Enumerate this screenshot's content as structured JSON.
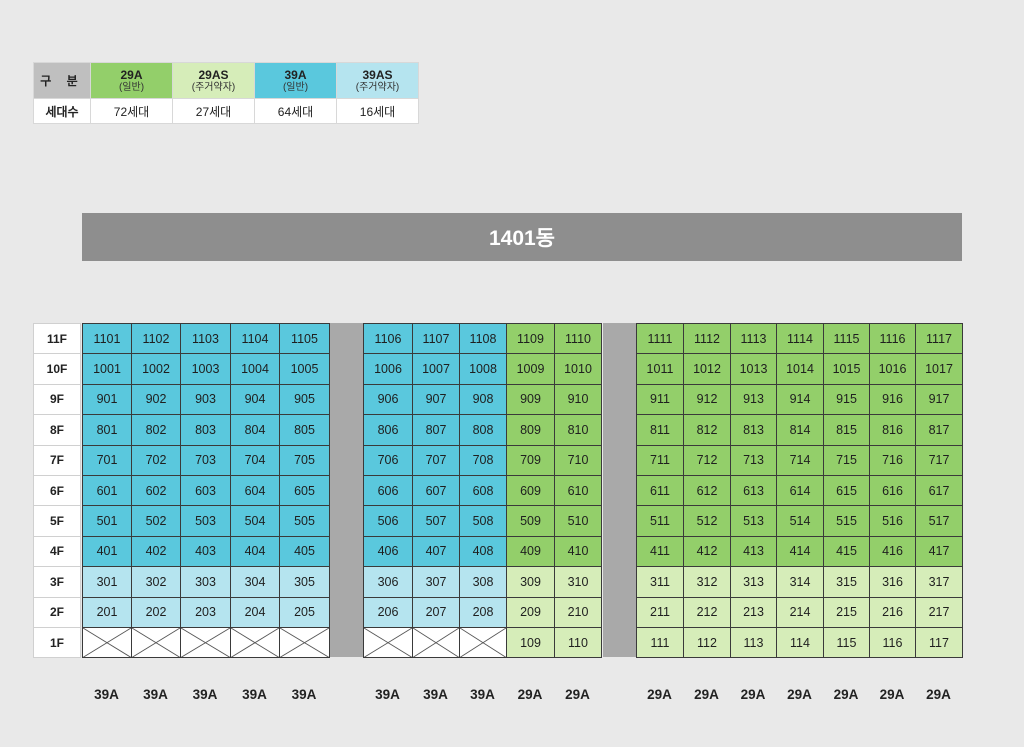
{
  "legend": {
    "header_label": "구 분",
    "row_label": "세대수",
    "types": [
      {
        "code": "29A",
        "sub": "(일반)",
        "count": "72세대",
        "color": "#93cf6a"
      },
      {
        "code": "29AS",
        "sub": "(주거약자)",
        "count": "27세대",
        "color": "#d6edb9"
      },
      {
        "code": "39A",
        "sub": "(일반)",
        "count": "64세대",
        "color": "#5ac8dd"
      },
      {
        "code": "39AS",
        "sub": "(주거약자)",
        "count": "16세대",
        "color": "#b5e4ef"
      }
    ]
  },
  "building": {
    "name": "1401동"
  },
  "floors": [
    "11F",
    "10F",
    "9F",
    "8F",
    "7F",
    "6F",
    "5F",
    "4F",
    "3F",
    "2F",
    "1F"
  ],
  "columns": [
    {
      "line": "01",
      "type_label": "39A",
      "normal": "39A",
      "accessible": "39AS",
      "first_floor": "none"
    },
    {
      "line": "02",
      "type_label": "39A",
      "normal": "39A",
      "accessible": "39AS",
      "first_floor": "none"
    },
    {
      "line": "03",
      "type_label": "39A",
      "normal": "39A",
      "accessible": "39AS",
      "first_floor": "none"
    },
    {
      "line": "04",
      "type_label": "39A",
      "normal": "39A",
      "accessible": "39AS",
      "first_floor": "none"
    },
    {
      "line": "05",
      "type_label": "39A",
      "normal": "39A",
      "accessible": "39AS",
      "first_floor": "none"
    },
    {
      "line": "06",
      "type_label": "39A",
      "normal": "39A",
      "accessible": "39AS",
      "first_floor": "none"
    },
    {
      "line": "07",
      "type_label": "39A",
      "normal": "39A",
      "accessible": "39AS",
      "first_floor": "none"
    },
    {
      "line": "08",
      "type_label": "39A",
      "normal": "39A",
      "accessible": "39AS",
      "first_floor": "none"
    },
    {
      "line": "09",
      "type_label": "29A",
      "normal": "29A",
      "accessible": "29AS",
      "first_floor": "unit"
    },
    {
      "line": "10",
      "type_label": "29A",
      "normal": "29A",
      "accessible": "29AS",
      "first_floor": "unit"
    },
    {
      "line": "11",
      "type_label": "29A",
      "normal": "29A",
      "accessible": "29AS",
      "first_floor": "unit"
    },
    {
      "line": "12",
      "type_label": "29A",
      "normal": "29A",
      "accessible": "29AS",
      "first_floor": "unit"
    },
    {
      "line": "13",
      "type_label": "29A",
      "normal": "29A",
      "accessible": "29AS",
      "first_floor": "unit"
    },
    {
      "line": "14",
      "type_label": "29A",
      "normal": "29A",
      "accessible": "29AS",
      "first_floor": "unit"
    },
    {
      "line": "15",
      "type_label": "29A",
      "normal": "29A",
      "accessible": "29AS",
      "first_floor": "unit"
    },
    {
      "line": "16",
      "type_label": "29A",
      "normal": "29A",
      "accessible": "29AS",
      "first_floor": "unit"
    },
    {
      "line": "17",
      "type_label": "29A",
      "normal": "29A",
      "accessible": "29AS",
      "first_floor": "unit"
    }
  ],
  "accessible_floors": [
    "3F",
    "2F",
    "1F"
  ]
}
